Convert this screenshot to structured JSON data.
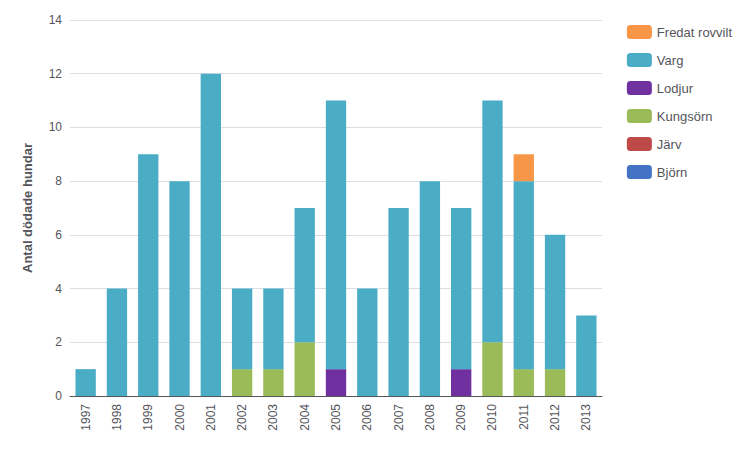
{
  "chart_data": {
    "type": "bar",
    "stacked": true,
    "grid": true,
    "legend": "right",
    "categories": [
      "1997",
      "1998",
      "1999",
      "2000",
      "2001",
      "2002",
      "2003",
      "2004",
      "2005",
      "2006",
      "2007",
      "2008",
      "2009",
      "2010",
      "2011",
      "2012",
      "2013"
    ],
    "ylabel": "Antal dödade hundar",
    "ylim": [
      0,
      14
    ],
    "yticks": [
      0,
      2,
      4,
      6,
      8,
      10,
      12,
      14
    ],
    "series": [
      {
        "name": "Björn",
        "color": "#4472c4",
        "values": [
          0,
          0,
          0,
          0,
          0,
          0,
          0,
          0,
          0,
          0,
          0,
          0,
          0,
          0,
          0,
          0,
          0
        ]
      },
      {
        "name": "Järv",
        "color": "#be4b48",
        "values": [
          0,
          0,
          0,
          0,
          0,
          0,
          0,
          0,
          0,
          0,
          0,
          0,
          0,
          0,
          0,
          0,
          0
        ]
      },
      {
        "name": "Kungsörn",
        "color": "#9bbb59",
        "values": [
          0,
          0,
          0,
          0,
          0,
          1,
          1,
          2,
          0,
          0,
          0,
          0,
          0,
          2,
          1,
          1,
          0
        ]
      },
      {
        "name": "Lodjur",
        "color": "#7030a0",
        "values": [
          0,
          0,
          0,
          0,
          0,
          0,
          0,
          0,
          1,
          0,
          0,
          0,
          1,
          0,
          0,
          0,
          0
        ]
      },
      {
        "name": "Varg",
        "color": "#4bacc6",
        "values": [
          1,
          4,
          9,
          8,
          12,
          3,
          3,
          5,
          10,
          4,
          7,
          8,
          6,
          9,
          7,
          5,
          3
        ]
      },
      {
        "name": "Fredat rovvilt",
        "color": "#f79646",
        "values": [
          0,
          0,
          0,
          0,
          0,
          0,
          0,
          0,
          0,
          0,
          0,
          0,
          0,
          0,
          1,
          0,
          0
        ]
      }
    ]
  }
}
